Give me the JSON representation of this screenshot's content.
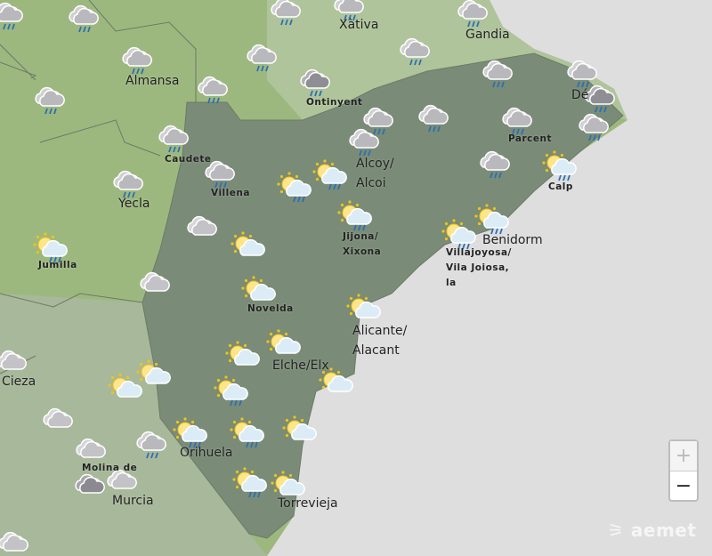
{
  "map": {
    "colors": {
      "sea": "#dedede",
      "land": "#9db87f",
      "province": "#7a8c77",
      "valencia": "#a9bd95",
      "border": "#6b7a66"
    },
    "places": {
      "xativa": "Xàtiva",
      "gandia": "Gandia",
      "almansa": "Almansa",
      "ontinyent": "Ontinyent",
      "denia": "Dé",
      "caudete": "Caudete",
      "alcoy1": "Alcoy/",
      "alcoy2": "Alcoi",
      "parcent": "Parcent",
      "villena": "Villena",
      "yecla": "Yecla",
      "calp": "Calp",
      "jijona1": "Jijona/",
      "jijona2": "Xixona",
      "benidorm": "Benidorm",
      "villajoyosa1": "Villajoyosa/",
      "villajoyosa2": "Vila Joiosa,",
      "villajoyosa3": "la",
      "jumilla": "Jumilla",
      "novelda": "Novelda",
      "alicante1": "Alicante/",
      "alicante2": "Alacant",
      "cieza": "Cieza",
      "elche": "Elche/Elx",
      "molina": "Molina de",
      "orihuela": "Orihuela",
      "murcia": "Murcia",
      "torrevieja": "Torrevieja"
    },
    "weather_icons": [
      "rain",
      "rain",
      "rain",
      "rain",
      "rain",
      "rain",
      "rain",
      "rain",
      "rain",
      "rain-dark",
      "rain",
      "rain",
      "rain-dark",
      "rain",
      "rain",
      "rain",
      "rain",
      "rain",
      "rain",
      "rain",
      "rain",
      "rain",
      "rain",
      "sun-cloud-rain",
      "sun-cloud-rain",
      "sun-cloud-rain",
      "cloudy",
      "sun-cloud-rain",
      "sun-cloud",
      "sun-cloud-rain",
      "sun-cloud-rain",
      "sun-cloud-rain",
      "cloudy",
      "sun-cloud",
      "sun-cloud",
      "cloudy",
      "sun-cloud",
      "sun-cloud",
      "sun-cloud",
      "sun-cloud",
      "sun-cloud",
      "sun-cloud-rain",
      "cloudy",
      "cloudy",
      "rain",
      "sun-cloud-rain",
      "sun-cloud-rain",
      "sun-cloud",
      "overcast",
      "cloudy",
      "sun-cloud-rain",
      "sun-cloud",
      "cloudy"
    ]
  },
  "controls": {
    "zoom_in": "+",
    "zoom_out": "−"
  },
  "logo": "aemet"
}
